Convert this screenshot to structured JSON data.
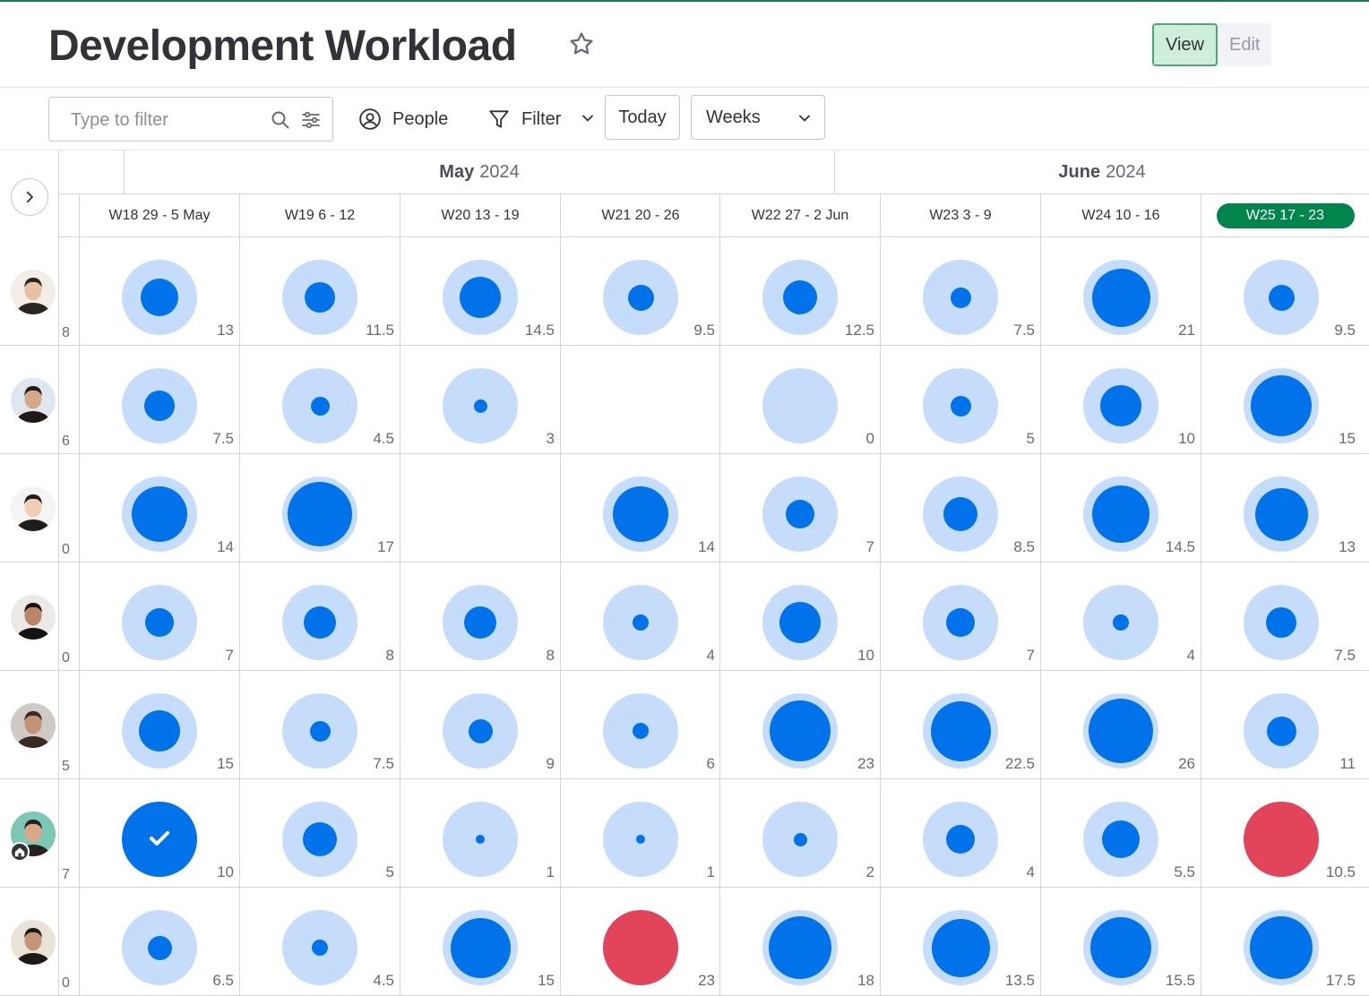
{
  "header": {
    "title": "Development Workload",
    "view_label": "View",
    "edit_label": "Edit"
  },
  "toolbar": {
    "filter_placeholder": "Type to filter",
    "people_label": "People",
    "filter_label": "Filter",
    "today_label": "Today",
    "weeks_label": "Weeks"
  },
  "months": [
    {
      "bold": "May",
      "rest": "2024"
    },
    {
      "bold": "June",
      "rest": "2024"
    }
  ],
  "weeks": [
    "W18 29 - 5 May",
    "W19 6 - 12",
    "W20 13 - 19",
    "W21 20 - 26",
    "W22 27 - 2 Jun",
    "W23 3 - 9",
    "W24 10 - 16",
    "W25 17 - 23"
  ],
  "current_week_index": 7,
  "colors": {
    "accent_blue": "#0073ea",
    "halo_blue": "#c5ddfb",
    "overload_red": "#e2445c",
    "current_week_green": "#00854d"
  },
  "people": [
    {
      "capacity": "8",
      "cells": [
        {
          "value": "13",
          "fill": 0.55
        },
        {
          "value": "11.5",
          "fill": 0.45
        },
        {
          "value": "14.5",
          "fill": 0.6
        },
        {
          "value": "9.5",
          "fill": 0.38
        },
        {
          "value": "12.5",
          "fill": 0.5
        },
        {
          "value": "7.5",
          "fill": 0.3
        },
        {
          "value": "21",
          "fill": 0.85
        },
        {
          "value": "9.5",
          "fill": 0.38
        }
      ]
    },
    {
      "capacity": "6",
      "cells": [
        {
          "value": "7.5",
          "fill": 0.45
        },
        {
          "value": "4.5",
          "fill": 0.28
        },
        {
          "value": "3",
          "fill": 0.2
        },
        {
          "value": "",
          "fill": -1
        },
        {
          "value": "0",
          "fill": 0
        },
        {
          "value": "5",
          "fill": 0.3
        },
        {
          "value": "10",
          "fill": 0.6
        },
        {
          "value": "15",
          "fill": 0.9
        }
      ]
    },
    {
      "capacity": "0",
      "cells": [
        {
          "value": "14",
          "fill": 0.82
        },
        {
          "value": "17",
          "fill": 0.95
        },
        {
          "value": "",
          "fill": -1
        },
        {
          "value": "14",
          "fill": 0.82
        },
        {
          "value": "7",
          "fill": 0.42
        },
        {
          "value": "8.5",
          "fill": 0.5
        },
        {
          "value": "14.5",
          "fill": 0.84
        },
        {
          "value": "13",
          "fill": 0.78
        }
      ]
    },
    {
      "capacity": "0",
      "cells": [
        {
          "value": "7",
          "fill": 0.42
        },
        {
          "value": "8",
          "fill": 0.47
        },
        {
          "value": "8",
          "fill": 0.47
        },
        {
          "value": "4",
          "fill": 0.24
        },
        {
          "value": "10",
          "fill": 0.6
        },
        {
          "value": "7",
          "fill": 0.42
        },
        {
          "value": "4",
          "fill": 0.24
        },
        {
          "value": "7.5",
          "fill": 0.45
        }
      ]
    },
    {
      "capacity": "5",
      "cells": [
        {
          "value": "15",
          "fill": 0.6
        },
        {
          "value": "7.5",
          "fill": 0.3
        },
        {
          "value": "9",
          "fill": 0.36
        },
        {
          "value": "6",
          "fill": 0.24
        },
        {
          "value": "23",
          "fill": 0.9
        },
        {
          "value": "22.5",
          "fill": 0.88
        },
        {
          "value": "26",
          "fill": 0.95
        },
        {
          "value": "11",
          "fill": 0.44
        }
      ]
    },
    {
      "capacity": "7",
      "cells": [
        {
          "value": "10",
          "fill": 1,
          "state": "done"
        },
        {
          "value": "5",
          "fill": 0.5
        },
        {
          "value": "1",
          "fill": 0.12
        },
        {
          "value": "1",
          "fill": 0.12
        },
        {
          "value": "2",
          "fill": 0.2
        },
        {
          "value": "4",
          "fill": 0.42
        },
        {
          "value": "5.5",
          "fill": 0.55
        },
        {
          "value": "10.5",
          "fill": 1,
          "state": "over"
        }
      ]
    },
    {
      "capacity": "0",
      "cells": [
        {
          "value": "6.5",
          "fill": 0.35
        },
        {
          "value": "4.5",
          "fill": 0.24
        },
        {
          "value": "15",
          "fill": 0.88
        },
        {
          "value": "23",
          "fill": 1,
          "state": "over"
        },
        {
          "value": "18",
          "fill": 0.92
        },
        {
          "value": "13.5",
          "fill": 0.85
        },
        {
          "value": "15.5",
          "fill": 0.9
        },
        {
          "value": "17.5",
          "fill": 0.92
        }
      ]
    }
  ],
  "icons": {
    "star": "star-icon",
    "search": "search-icon",
    "sliders": "sliders-icon",
    "people": "person-circle-icon",
    "filter": "funnel-icon",
    "chevron": "chevron-down-icon",
    "expand": "chevron-right-icon",
    "check": "check-icon",
    "home": "home-icon"
  }
}
